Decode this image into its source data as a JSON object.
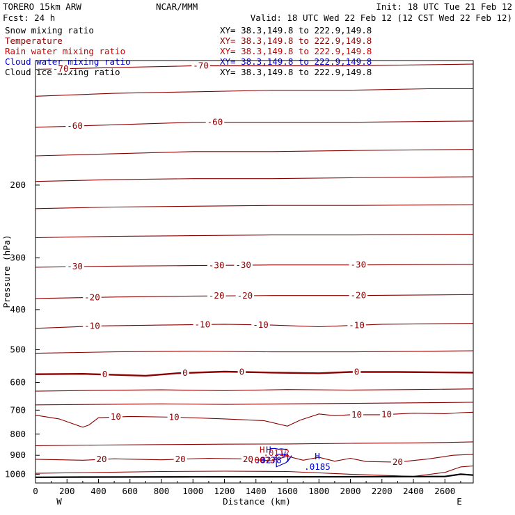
{
  "header": {
    "model": "TORERO  15km ARW",
    "center": "NCAR/MMM",
    "init": "Init: 18 UTC Tue 21 Feb 12",
    "fcst": "Fcst:   24 h",
    "valid": "Valid: 18 UTC Wed 22 Feb 12 (12 CST Wed 22 Feb 12)"
  },
  "fields": [
    {
      "label": "Snow mixing ratio",
      "xy": "XY=  38.3,149.8 to 222.9,149.8",
      "color": "#000000"
    },
    {
      "label": "Temperature",
      "xy": "XY=  38.3,149.8 to 222.9,149.8",
      "color": "#8b0000"
    },
    {
      "label": "Rain water mixing ratio",
      "xy": "XY=  38.3,149.8 to 222.9,149.8",
      "color": "#cc0000"
    },
    {
      "label": "Cloud water mixing ratio",
      "xy": "XY=  38.3,149.8 to 222.9,149.8",
      "color": "#0000cc"
    },
    {
      "label": "Cloud ice mixing ratio",
      "xy": "XY=  38.3,149.8 to 222.9,149.8",
      "color": "#000000"
    }
  ],
  "chart_data": {
    "type": "cross-section contour",
    "xlabel": "Distance (km)",
    "ylabel": "Pressure (hPa)",
    "xlim": [
      0,
      2780
    ],
    "ylim": [
      1050,
      100
    ],
    "y_scale": "log-pressure",
    "x_ticks": [
      0,
      200,
      400,
      600,
      800,
      1000,
      1200,
      1400,
      1600,
      1800,
      2000,
      2200,
      2400,
      2600
    ],
    "y_ticks": [
      200,
      300,
      400,
      500,
      600,
      700,
      800,
      900,
      1000
    ],
    "x_end_labels": {
      "left": "W",
      "right": "E"
    },
    "temperature_isotherms": [
      {
        "p": [
          [
            0,
            122
          ],
          [
            500,
            120
          ],
          [
            1000,
            119
          ],
          [
            1500,
            118
          ],
          [
            2000,
            118
          ],
          [
            2500,
            117
          ],
          [
            2780,
            117
          ]
        ]
      },
      {
        "label": "-70",
        "p": [
          [
            0,
            105
          ],
          [
            500,
            104
          ],
          [
            1000,
            103
          ],
          [
            1500,
            103
          ],
          [
            2000,
            103
          ],
          [
            2780,
            102
          ]
        ],
        "labels_at": [
          160,
          1050
        ]
      },
      {
        "label": "-60",
        "p": [
          [
            0,
            145
          ],
          [
            500,
            143
          ],
          [
            1000,
            141
          ],
          [
            1500,
            141
          ],
          [
            2000,
            141
          ],
          [
            2780,
            140
          ]
        ],
        "labels_at": [
          250,
          1140
        ]
      },
      {
        "p": [
          [
            0,
            170
          ],
          [
            500,
            168
          ],
          [
            1000,
            166
          ],
          [
            1500,
            166
          ],
          [
            2000,
            165
          ],
          [
            2780,
            164
          ]
        ]
      },
      {
        "p": [
          [
            0,
            196
          ],
          [
            500,
            194
          ],
          [
            1000,
            193
          ],
          [
            1500,
            193
          ],
          [
            2000,
            192
          ],
          [
            2780,
            191
          ]
        ]
      },
      {
        "p": [
          [
            0,
            228
          ],
          [
            500,
            226
          ],
          [
            1000,
            225
          ],
          [
            1500,
            224
          ],
          [
            2000,
            224
          ],
          [
            2780,
            223
          ]
        ]
      },
      {
        "p": [
          [
            0,
            268
          ],
          [
            500,
            266
          ],
          [
            1000,
            265
          ],
          [
            1500,
            264
          ],
          [
            2000,
            264
          ],
          [
            2780,
            263
          ]
        ]
      },
      {
        "label": "-30",
        "p": [
          [
            0,
            316
          ],
          [
            500,
            314
          ],
          [
            1000,
            313
          ],
          [
            1500,
            312
          ],
          [
            2000,
            312
          ],
          [
            2780,
            311
          ]
        ],
        "labels_at": [
          250,
          1150,
          1320,
          2050
        ]
      },
      {
        "label": "-20",
        "p": [
          [
            0,
            376
          ],
          [
            500,
            373
          ],
          [
            1000,
            371
          ],
          [
            1500,
            370
          ],
          [
            2000,
            370
          ],
          [
            2780,
            368
          ]
        ],
        "labels_at": [
          360,
          1150,
          1330,
          2050
        ]
      },
      {
        "label": "-10",
        "p": [
          [
            0,
            444
          ],
          [
            400,
            438
          ],
          [
            800,
            436
          ],
          [
            1200,
            434
          ],
          [
            1500,
            436
          ],
          [
            1800,
            440
          ],
          [
            2200,
            434
          ],
          [
            2780,
            432
          ]
        ],
        "labels_at": [
          360,
          1060,
          1430,
          2040
        ]
      },
      {
        "p": [
          [
            0,
            510
          ],
          [
            500,
            506
          ],
          [
            1000,
            504
          ],
          [
            1500,
            506
          ],
          [
            2000,
            506
          ],
          [
            2780,
            503
          ]
        ]
      },
      {
        "label": "0",
        "p": [
          [
            0,
            573
          ],
          [
            300,
            572
          ],
          [
            500,
            575
          ],
          [
            700,
            578
          ],
          [
            900,
            570
          ],
          [
            1200,
            565
          ],
          [
            1500,
            568
          ],
          [
            1800,
            570
          ],
          [
            2000,
            566
          ],
          [
            2300,
            566
          ],
          [
            2780,
            568
          ]
        ],
        "labels_at": [
          440,
          950,
          1310,
          2040
        ],
        "bold": true
      },
      {
        "p": [
          [
            0,
            630
          ],
          [
            400,
            627
          ],
          [
            800,
            625
          ],
          [
            1200,
            628
          ],
          [
            1600,
            624
          ],
          [
            2000,
            626
          ],
          [
            2400,
            624
          ],
          [
            2780,
            622
          ]
        ]
      },
      {
        "p": [
          [
            0,
            680
          ],
          [
            400,
            678
          ],
          [
            800,
            676
          ],
          [
            1200,
            678
          ],
          [
            1600,
            676
          ],
          [
            2000,
            674
          ],
          [
            2400,
            672
          ],
          [
            2780,
            670
          ]
        ]
      },
      {
        "label": "10",
        "p": [
          [
            0,
            720
          ],
          [
            150,
            735
          ],
          [
            300,
            770
          ],
          [
            340,
            760
          ],
          [
            400,
            730
          ],
          [
            600,
            725
          ],
          [
            900,
            728
          ],
          [
            1200,
            735
          ],
          [
            1450,
            742
          ],
          [
            1600,
            765
          ],
          [
            1680,
            740
          ],
          [
            1800,
            715
          ],
          [
            1900,
            722
          ],
          [
            2000,
            718
          ],
          [
            2200,
            718
          ],
          [
            2400,
            712
          ],
          [
            2600,
            714
          ],
          [
            2700,
            710
          ],
          [
            2780,
            708
          ]
        ],
        "labels_at": [
          510,
          880,
          2040,
          2230
        ]
      },
      {
        "p": [
          [
            0,
            853
          ],
          [
            400,
            850
          ],
          [
            800,
            848
          ],
          [
            1200,
            846
          ],
          [
            1600,
            845
          ],
          [
            2000,
            842
          ],
          [
            2400,
            840
          ],
          [
            2600,
            838
          ],
          [
            2780,
            835
          ]
        ]
      },
      {
        "label": "20",
        "p": [
          [
            0,
            920
          ],
          [
            300,
            925
          ],
          [
            500,
            918
          ],
          [
            800,
            923
          ],
          [
            1100,
            915
          ],
          [
            1300,
            918
          ],
          [
            1500,
            928
          ],
          [
            1600,
            905
          ],
          [
            1700,
            925
          ],
          [
            1800,
            910
          ],
          [
            1900,
            930
          ],
          [
            2000,
            915
          ],
          [
            2100,
            932
          ],
          [
            2300,
            935
          ],
          [
            2500,
            918
          ],
          [
            2650,
            900
          ],
          [
            2780,
            895
          ]
        ],
        "labels_at": [
          420,
          920,
          1350,
          2300
        ]
      },
      {
        "p": [
          [
            0,
            995
          ],
          [
            400,
            990
          ],
          [
            800,
            985
          ],
          [
            1200,
            983
          ],
          [
            1600,
            985
          ],
          [
            2000,
            1000
          ],
          [
            2400,
            1012
          ],
          [
            2600,
            990
          ],
          [
            2700,
            960
          ],
          [
            2780,
            955
          ]
        ]
      }
    ],
    "terrain": [
      [
        0,
        1017
      ],
      [
        300,
        1016
      ],
      [
        1000,
        1015
      ],
      [
        2000,
        1014
      ],
      [
        2600,
        1013
      ],
      [
        2700,
        1000
      ],
      [
        2780,
        1005
      ]
    ],
    "cloud_water": {
      "p": [
        [
          1490,
          868
        ],
        [
          1520,
          866
        ],
        [
          1545,
          870
        ],
        [
          1560,
          868
        ],
        [
          1580,
          870
        ],
        [
          1600,
          870
        ]
      ]
    },
    "extrema": [
      {
        "type": "max",
        "mark": "H",
        "x": 1440,
        "p": 887,
        "value": ".0073",
        "color": "#cc0000"
      },
      {
        "type": "max",
        "mark": "H",
        "x": 1480,
        "p": 887,
        "value": ".0278",
        "color": "#0000cc"
      },
      {
        "type": "max",
        "mark": "H",
        "x": 1790,
        "p": 921,
        "value": ".0185",
        "color": "#0000cc"
      }
    ],
    "overlap_value": ".0112"
  },
  "colors": {
    "temperature": "#8b0000",
    "frame": "#000000",
    "cloud_water": "#0000cc",
    "rain": "#cc0000"
  }
}
